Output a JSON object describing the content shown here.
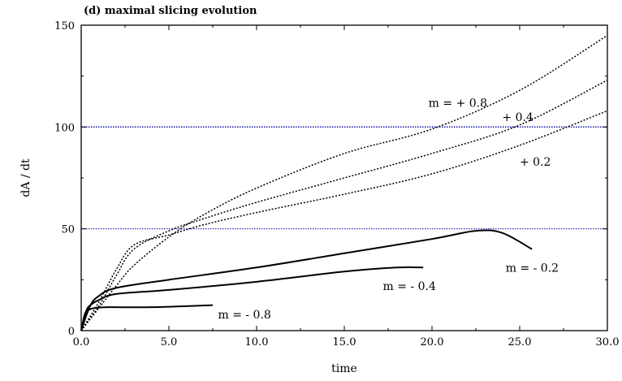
{
  "chart_data": {
    "type": "line",
    "title": "(d) maximal slicing evolution",
    "xlabel": "time",
    "ylabel": "dA / dt",
    "xlim": [
      0,
      30
    ],
    "ylim": [
      0,
      150
    ],
    "x_ticks": [
      "0.0",
      "5.0",
      "10.0",
      "15.0",
      "20.0",
      "25.0",
      "30.0"
    ],
    "y_ticks": [
      "0",
      "50",
      "100",
      "150"
    ],
    "reference_lines": [
      {
        "y": 50,
        "color": "#1a1aa8",
        "style": "dotted"
      },
      {
        "y": 100,
        "color": "#1a1aa8",
        "style": "dotted"
      }
    ],
    "series": [
      {
        "name": "m = + 0.8",
        "style": "dotted",
        "x": [
          0,
          1,
          2,
          3,
          5,
          7,
          10,
          15,
          20,
          25,
          30
        ],
        "y": [
          0,
          11,
          22,
          32,
          46,
          57,
          70,
          87,
          99,
          118,
          145
        ]
      },
      {
        "name": "+ 0.4",
        "style": "dotted",
        "x": [
          0,
          1,
          2,
          3,
          5,
          7,
          10,
          15,
          20,
          25,
          30
        ],
        "y": [
          0,
          12,
          27,
          40,
          49,
          55,
          63,
          75,
          87,
          101,
          123
        ]
      },
      {
        "name": "+ 0.2",
        "style": "dotted",
        "x": [
          0,
          1,
          2,
          3,
          5,
          7,
          10,
          15,
          20,
          25,
          30
        ],
        "y": [
          0,
          14,
          30,
          42,
          47,
          52,
          58,
          67,
          77,
          91,
          108
        ]
      },
      {
        "name": "m = - 0.2",
        "style": "solid",
        "x": [
          0,
          0.5,
          1,
          2,
          5,
          10,
          15,
          20,
          22.5,
          24,
          25.7
        ],
        "y": [
          0,
          12,
          17,
          21,
          25,
          31,
          38,
          45,
          49,
          48,
          40
        ]
      },
      {
        "name": "m = - 0.4",
        "style": "solid",
        "x": [
          0,
          0.3,
          0.6,
          1,
          2,
          5,
          10,
          15,
          18,
          19.5
        ],
        "y": [
          0,
          10,
          13,
          15,
          18,
          20,
          24,
          29,
          31,
          31
        ]
      },
      {
        "name": "m = - 0.8",
        "style": "solid",
        "x": [
          0,
          0.2,
          0.4,
          0.7,
          1.5,
          4,
          7.5
        ],
        "y": [
          0,
          8,
          10,
          11,
          11.5,
          11.5,
          12.5
        ]
      }
    ],
    "annotations": [
      {
        "text": "m = + 0.8",
        "x": 19.8,
        "y": 112
      },
      {
        "text": "+ 0.4",
        "x": 24.0,
        "y": 105
      },
      {
        "text": "+ 0.2",
        "x": 25.0,
        "y": 83
      },
      {
        "text": "m = - 0.2",
        "x": 24.2,
        "y": 31
      },
      {
        "text": "m = - 0.4",
        "x": 17.2,
        "y": 22
      },
      {
        "text": "m = - 0.8",
        "x": 7.8,
        "y": 8
      }
    ]
  }
}
